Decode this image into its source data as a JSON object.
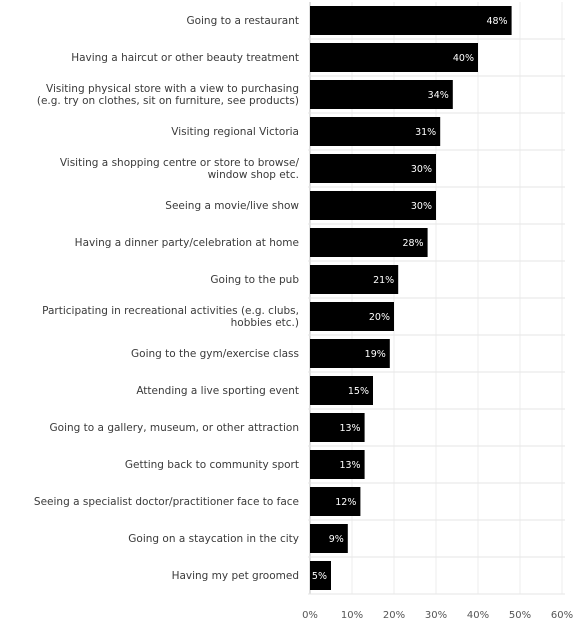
{
  "chart_data": {
    "type": "bar",
    "orientation": "horizontal",
    "title": "",
    "xlabel": "",
    "ylabel": "",
    "xlim": [
      0,
      60
    ],
    "x_ticks": [
      "0%",
      "10%",
      "20%",
      "30%",
      "40%",
      "50%",
      "60%"
    ],
    "grid": true,
    "legend": "none",
    "bar_color": "#000000",
    "value_label_color": "#ffffff",
    "categories": [
      "Going to a restaurant",
      "Having a haircut or other beauty treatment",
      [
        "Visiting physical store with a view to purchasing",
        "(e.g. try on clothes, sit on furniture, see products)"
      ],
      "Visiting regional Victoria",
      [
        "Visiting a shopping centre or store to browse/",
        "window shop  etc."
      ],
      "Seeing a movie/live show",
      "Having a dinner party/celebration at home",
      "Going to the pub",
      [
        "Participating in recreational activities (e.g. clubs,",
        "hobbies etc.)"
      ],
      "Going to the gym/exercise class",
      "Attending a live sporting event",
      "Going to a gallery, museum, or other attraction",
      "Getting back to community sport",
      "Seeing a specialist doctor/practitioner face to face",
      "Going on a staycation in the city",
      "Having my pet groomed"
    ],
    "values": [
      48,
      40,
      34,
      31,
      30,
      30,
      28,
      21,
      20,
      19,
      15,
      13,
      13,
      12,
      9,
      5
    ],
    "value_labels": [
      "48%",
      "40%",
      "34%",
      "31%",
      "30%",
      "30%",
      "28%",
      "21%",
      "20%",
      "19%",
      "15%",
      "13%",
      "13%",
      "12%",
      "9%",
      "5%"
    ]
  }
}
